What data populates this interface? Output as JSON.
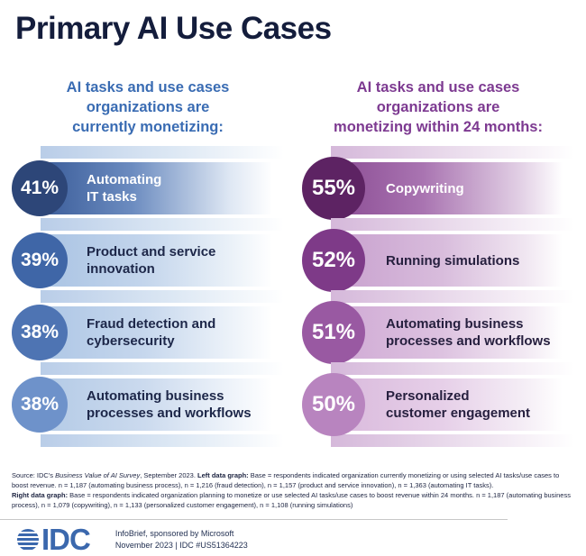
{
  "title": "Primary AI Use Cases",
  "columns": [
    {
      "header_line1": "AI tasks and use cases",
      "header_line2": "organizations are",
      "header_bold": "currently monetizing:",
      "header_color": "#3a6cb3",
      "echo_stops": [
        "#b9cde8 0%",
        "#dde8f4 55%",
        "rgba(255,255,255,0) 100%"
      ],
      "rows": [
        {
          "pct": "41%",
          "label": "Automating\nIT tasks",
          "circle": "#2d4678",
          "text": "#ffffff",
          "bar_stops": [
            "#3a5c99 0%",
            "#6c8cc0 40%",
            "#dfe8f4 82%",
            "rgba(255,255,255,0) 100%"
          ]
        },
        {
          "pct": "39%",
          "label": "Product and service\ninnovation",
          "circle": "#3f66a7",
          "text": "#1d2749",
          "bar_stops": [
            "#a9c3e3 0%",
            "#c3d5ec 45%",
            "#eaf1f8 82%",
            "rgba(255,255,255,0) 100%"
          ]
        },
        {
          "pct": "38%",
          "label": "Fraud detection and\ncybersecurity",
          "circle": "#4e74b3",
          "text": "#1d2749",
          "bar_stops": [
            "#adc6e5 0%",
            "#c6d7ed 45%",
            "#ecf2f9 82%",
            "rgba(255,255,255,0) 100%"
          ]
        },
        {
          "pct": "38%",
          "label": "Automating business\nprocesses and workflows",
          "circle": "#6e92ca",
          "text": "#1d2749",
          "bar_stops": [
            "#b3cae6 0%",
            "#cbdaee 45%",
            "#eef3fa 82%",
            "rgba(255,255,255,0) 100%"
          ]
        }
      ]
    },
    {
      "header_line1": "AI tasks and use cases",
      "header_line2": "organizations are",
      "header_bold": "monetizing within 24 months:",
      "header_color": "#7d3a91",
      "echo_stops": [
        "#d5b8da 0%",
        "#ecdfee 55%",
        "rgba(255,255,255,0) 100%"
      ],
      "rows": [
        {
          "pct": "55%",
          "label": "Copywriting",
          "circle": "#5d2363",
          "text": "#ffffff",
          "bar_stops": [
            "#8a4b93 0%",
            "#a974b1 40%",
            "#e2d0e5 82%",
            "rgba(255,255,255,0) 100%"
          ]
        },
        {
          "pct": "52%",
          "label": "Running simulations",
          "circle": "#7e3a88",
          "text": "#27203f",
          "bar_stops": [
            "#c8a0ce 0%",
            "#d8bcdc 48%",
            "#f0e6f1 84%",
            "rgba(255,255,255,0) 100%"
          ]
        },
        {
          "pct": "51%",
          "label": "Automating business\nprocesses and workflows",
          "circle": "#9959a2",
          "text": "#27203f",
          "bar_stops": [
            "#cfa9d4 0%",
            "#ddc2e0 48%",
            "#f2e9f3 84%",
            "rgba(255,255,255,0) 100%"
          ]
        },
        {
          "pct": "50%",
          "label": "Personalized\ncustomer engagement",
          "circle": "#b884bf",
          "text": "#27203f",
          "bar_stops": [
            "#d9b9dc 0%",
            "#e6cfe8 48%",
            "#f5eef6 84%",
            "rgba(255,255,255,0) 100%"
          ]
        }
      ]
    }
  ],
  "source": {
    "p1_prefix": "Source: IDC's ",
    "p1_italic": "Business Value of AI Survey",
    "p1_mid": ", September 2023. ",
    "p1_bold": "Left data graph:",
    "p1_rest": " Base = respondents indicated organization currently monetizing or using selected AI tasks/use cases to boost revenue. n = 1,187 (automating business process), n = 1,216 (fraud detection), n = 1,157 (product and service innovation), n = 1,363 (automating IT tasks).",
    "p2_bold": "Right data graph:",
    "p2_rest": " Base = respondents indicated organization planning to monetize or use selected AI tasks/use cases to boost revenue within 24 months. n = 1,187 (automating business process), n = 1,079 (copywriting), n = 1,133 (personalized customer engagement), n = 1,108 (running simulations)"
  },
  "footer": {
    "logo_text": "IDC",
    "line1": "InfoBrief, sponsored by Microsoft",
    "line2": "November 2023  |  IDC #US51364223"
  },
  "chart_data": [
    {
      "type": "bar",
      "title": "AI tasks and use cases organizations are currently monetizing:",
      "categories": [
        "Automating IT tasks",
        "Product and service innovation",
        "Fraud detection and cybersecurity",
        "Automating business processes and workflows"
      ],
      "values": [
        41,
        39,
        38,
        38
      ],
      "unit": "%",
      "accent_color": "#2d4678"
    },
    {
      "type": "bar",
      "title": "AI tasks and use cases organizations are monetizing within 24 months:",
      "categories": [
        "Copywriting",
        "Running simulations",
        "Automating business processes and workflows",
        "Personalized customer engagement"
      ],
      "values": [
        55,
        52,
        51,
        50
      ],
      "unit": "%",
      "accent_color": "#5d2363"
    }
  ]
}
